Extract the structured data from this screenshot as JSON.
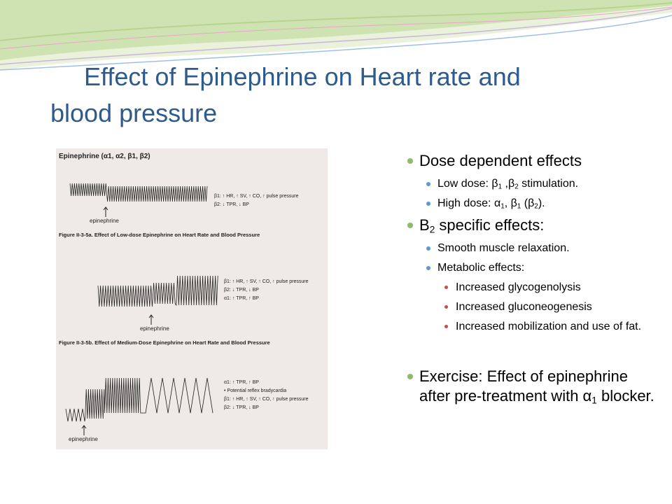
{
  "title": {
    "line1": "Effect of Epinephrine on Heart rate and",
    "line2": "blood pressure"
  },
  "figure": {
    "header": "Epinephrine (α1, α2, β1, β2)",
    "panel_a": {
      "caption": "Figure II-3-5a. Effect of Low-dose Epinephrine on Heart Rate and Blood Pressure",
      "arrow_label": "epinephrine",
      "legend": [
        "β1: ↑ HR, ↑ SV, ↑ CO, ↑ pulse pressure",
        "β2: ↓ TPR, ↓ BP"
      ]
    },
    "panel_b": {
      "caption": "Figure II-3-5b. Effect of Medium-Dose Epinephrine on Heart Rate and Blood Pressure",
      "arrow_label": "epinephrine",
      "legend": [
        "β1: ↑ HR, ↑ SV, ↑ CO, ↑ pulse pressure",
        "β2: ↓ TPR, ↓ BP",
        "α1: ↑ TPR, ↑ BP"
      ]
    },
    "panel_c": {
      "arrow_label": "epinephrine",
      "legend": [
        "α1: ↑ TPR, ↑ BP",
        "• Potential reflex bradycardia",
        "β1: ↑ HR, ↑ SV, ↑ CO, ↑ pulse pressure",
        "β2: ↓ TPR, ↓ BP"
      ]
    }
  },
  "bullets": {
    "dose": "Dose dependent effects",
    "low_pre": "Low dose: β",
    "low_s1": "1",
    "low_mid": " ,β",
    "low_s2": "2",
    "low_post": " stimulation.",
    "high_pre": "High dose: α",
    "high_s1": "1",
    "high_mid": ", β",
    "high_s2": "1",
    "high_mid2": " (β",
    "high_s3": "2",
    "high_post": ").",
    "b2_pre": "B",
    "b2_sub": "2",
    "b2_post": " specific effects:",
    "smooth": "Smooth muscle relaxation.",
    "metabolic": "Metabolic effects:",
    "glyco": "Increased glycogenolysis",
    "gluco": "Increased gluconeogenesis",
    "fat": "Increased mobilization and use of fat.",
    "ex_pre": "Exercise: Effect of epinephrine after pre-treatment  with α",
    "ex_sub": "1",
    "ex_post": " blocker."
  },
  "colors": {
    "title": "#2e5b8c",
    "bullet_l1": "#8dbb6a",
    "bullet_l2": "#5b9bd5",
    "bullet_l3": "#c0504d"
  }
}
